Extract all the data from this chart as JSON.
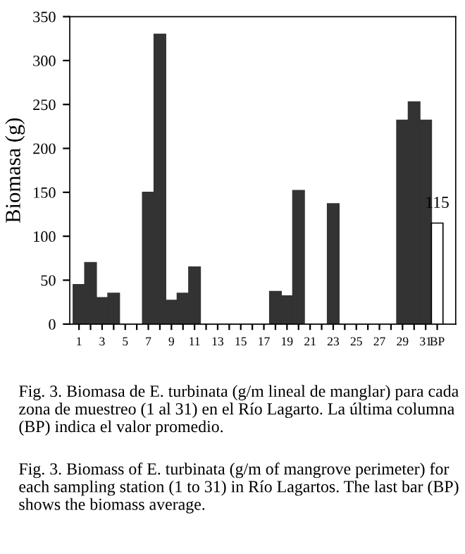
{
  "chart_data": {
    "type": "bar",
    "categories": [
      "1",
      null,
      "3",
      null,
      "5",
      null,
      "7",
      null,
      "9",
      null,
      "11",
      null,
      "13",
      null,
      "15",
      null,
      "17",
      null,
      "19",
      null,
      "21",
      null,
      "23",
      null,
      "25",
      null,
      "27",
      null,
      "29",
      null,
      "31",
      "BP"
    ],
    "values": [
      45,
      70,
      30,
      35,
      0,
      0,
      150,
      330,
      27,
      35,
      65,
      0,
      0,
      0,
      0,
      0,
      0,
      37,
      32,
      152,
      0,
      0,
      137,
      0,
      0,
      0,
      0,
      0,
      232,
      253,
      232,
      115
    ],
    "colors": [
      "#333333",
      "#333333",
      "#333333",
      "#333333",
      "#333333",
      "#333333",
      "#333333",
      "#333333",
      "#333333",
      "#333333",
      "#333333",
      "#333333",
      "#333333",
      "#333333",
      "#333333",
      "#333333",
      "#333333",
      "#333333",
      "#333333",
      "#333333",
      "#333333",
      "#333333",
      "#333333",
      "#333333",
      "#333333",
      "#333333",
      "#333333",
      "#333333",
      "#333333",
      "#333333",
      "#333333",
      "#ffffff"
    ],
    "value_labels": [
      null,
      null,
      null,
      null,
      null,
      null,
      null,
      null,
      null,
      null,
      null,
      null,
      null,
      null,
      null,
      null,
      null,
      null,
      null,
      null,
      null,
      null,
      null,
      null,
      null,
      null,
      null,
      null,
      null,
      null,
      null,
      "115"
    ],
    "ylabel": "Biomasa (g)",
    "ylim": [
      0,
      350
    ],
    "yticks": [
      0,
      50,
      100,
      150,
      200,
      250,
      300,
      350
    ],
    "grid": false,
    "legend": false,
    "annotations": [
      "Fig. 3. Biomasa de E. turbinata (g/m lineal de manglar) para cada zona de muestreo (1 al 31) en el Río Lagarto. La última columna (BP) indica el valor promedio.",
      "Fig. 3. Biomass of E. turbinata (g/m of mangrove perimeter) for each sampling station (1 to 31) in Río Lagartos. The last bar (BP) shows the biomass average."
    ]
  }
}
